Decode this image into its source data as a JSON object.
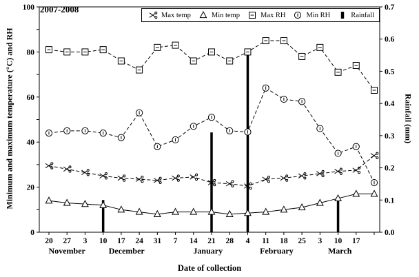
{
  "chart_data": {
    "type": "line",
    "title": "2007-2008",
    "xlabel": "Date of collection",
    "ylabel_left": "Minimum and maximum temperature (°C) and RH",
    "ylabel_right": "Rainfall (mm)",
    "axes": {
      "left": {
        "title": "Minimum and maximum temperature (°C) and RH",
        "min": 0,
        "max": 100,
        "tick": 10,
        "label_every": 20
      },
      "right": {
        "title": "Rainfall (mm)",
        "min": 0,
        "max": 0.7,
        "tick": 0.1
      },
      "x": {
        "title": "Date of collection"
      }
    },
    "categories": [
      "20",
      "27",
      "3",
      "10",
      "17",
      "24",
      "31",
      "7",
      "14",
      "21",
      "28",
      "4",
      "11",
      "18",
      "25",
      "3",
      "10",
      "17",
      ""
    ],
    "months": [
      {
        "label": "November",
        "center_index": 1.0
      },
      {
        "label": "December",
        "center_index": 4.3
      },
      {
        "label": "January",
        "center_index": 8.8
      },
      {
        "label": "February",
        "center_index": 12.6
      },
      {
        "label": "March",
        "center_index": 16.1
      }
    ],
    "series": [
      {
        "name": "Max temp",
        "marker": "scissors",
        "dash": true,
        "axis": "left",
        "values": [
          29.5,
          28,
          26.5,
          25,
          24,
          23.5,
          23,
          24,
          24.5,
          22,
          21.5,
          20.5,
          23.5,
          24,
          25,
          26,
          27,
          27.5,
          34
        ]
      },
      {
        "name": "Min temp",
        "marker": "triangle",
        "dash": false,
        "axis": "left",
        "values": [
          14,
          13,
          12.5,
          12,
          10,
          9,
          8,
          9,
          9,
          9,
          8,
          8.5,
          9,
          10,
          11,
          13,
          15,
          17,
          17
        ]
      },
      {
        "name": "Max RH",
        "marker": "square-dash",
        "dash": true,
        "axis": "left",
        "values": [
          81,
          80,
          80,
          81,
          76,
          72,
          82,
          83,
          76,
          80,
          76,
          80,
          85,
          85,
          78,
          82,
          71,
          74,
          63
        ]
      },
      {
        "name": "Min RH",
        "marker": "circle-bar",
        "dash": true,
        "axis": "left",
        "values": [
          44,
          45,
          45,
          44,
          42,
          53,
          38,
          41,
          47,
          51,
          45,
          44.5,
          64,
          59,
          58,
          46,
          35,
          38,
          22
        ]
      },
      {
        "name": "Rainfall",
        "marker": "filled-bar",
        "type": "bar",
        "axis": "right",
        "points": [
          {
            "index": 3,
            "value": 0.1
          },
          {
            "index": 9,
            "value": 0.31
          },
          {
            "index": 11,
            "value": 0.57
          },
          {
            "index": 16,
            "value": 0.11
          }
        ]
      }
    ]
  }
}
